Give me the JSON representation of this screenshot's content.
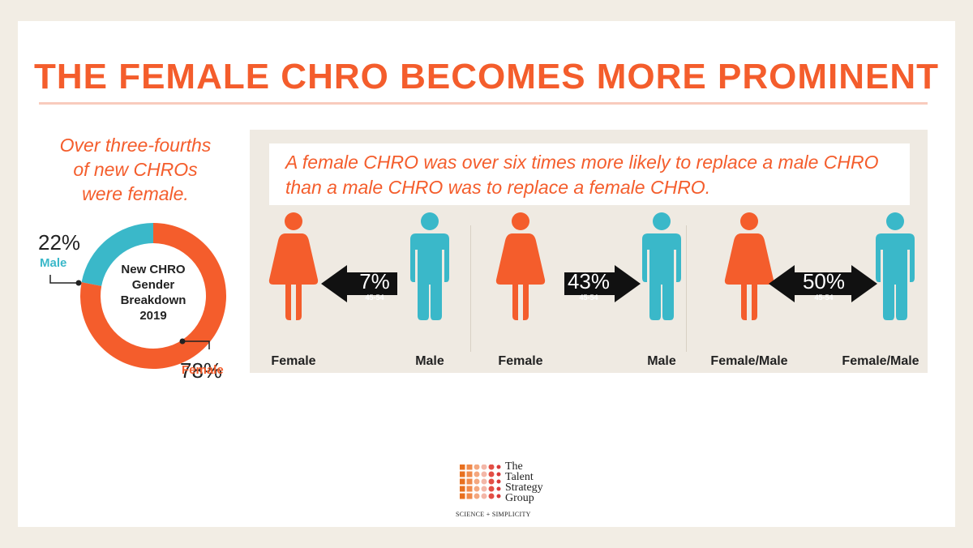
{
  "title": "THE FEMALE CHRO BECOMES MORE PROMINENT",
  "left_caption": [
    "Over three-fourths",
    "of new CHROs",
    "were female."
  ],
  "panel_note": [
    "A female CHRO was over six times more likely to replace a male CHRO",
    "than a male CHRO was to replace a female CHRO."
  ],
  "colors": {
    "female": "#f45d2c",
    "male": "#3ab8c9",
    "arrow": "#111111"
  },
  "icons": {
    "female": "woman-figure-icon",
    "male": "man-figure-icon"
  },
  "chart_data": [
    {
      "type": "pie",
      "donut": true,
      "center_label": [
        "New CHRO",
        "Gender",
        "Breakdown",
        "2019"
      ],
      "slices": [
        {
          "name": "Male",
          "value": 22,
          "value_label": "22%",
          "color": "#3ab8c9"
        },
        {
          "name": "Female",
          "value": 78,
          "value_label": "78%",
          "color": "#f45d2c"
        }
      ]
    },
    {
      "type": "table",
      "groups": [
        {
          "left": "Female",
          "right": "Male",
          "value": 7,
          "value_label": "7%",
          "sub": "45-54",
          "direction": "left"
        },
        {
          "left": "Female",
          "right": "Male",
          "value": 43,
          "value_label": "43%",
          "sub": "45-54",
          "direction": "right"
        },
        {
          "left": "Female/Male",
          "right": "Female/Male",
          "value": 50,
          "value_label": "50%",
          "sub": "45-54",
          "direction": "both"
        }
      ]
    }
  ],
  "logo": {
    "name_lines": [
      "The",
      "Talent",
      "Strategy",
      "Group"
    ],
    "tagline": "SCIENCE + SIMPLICITY"
  }
}
